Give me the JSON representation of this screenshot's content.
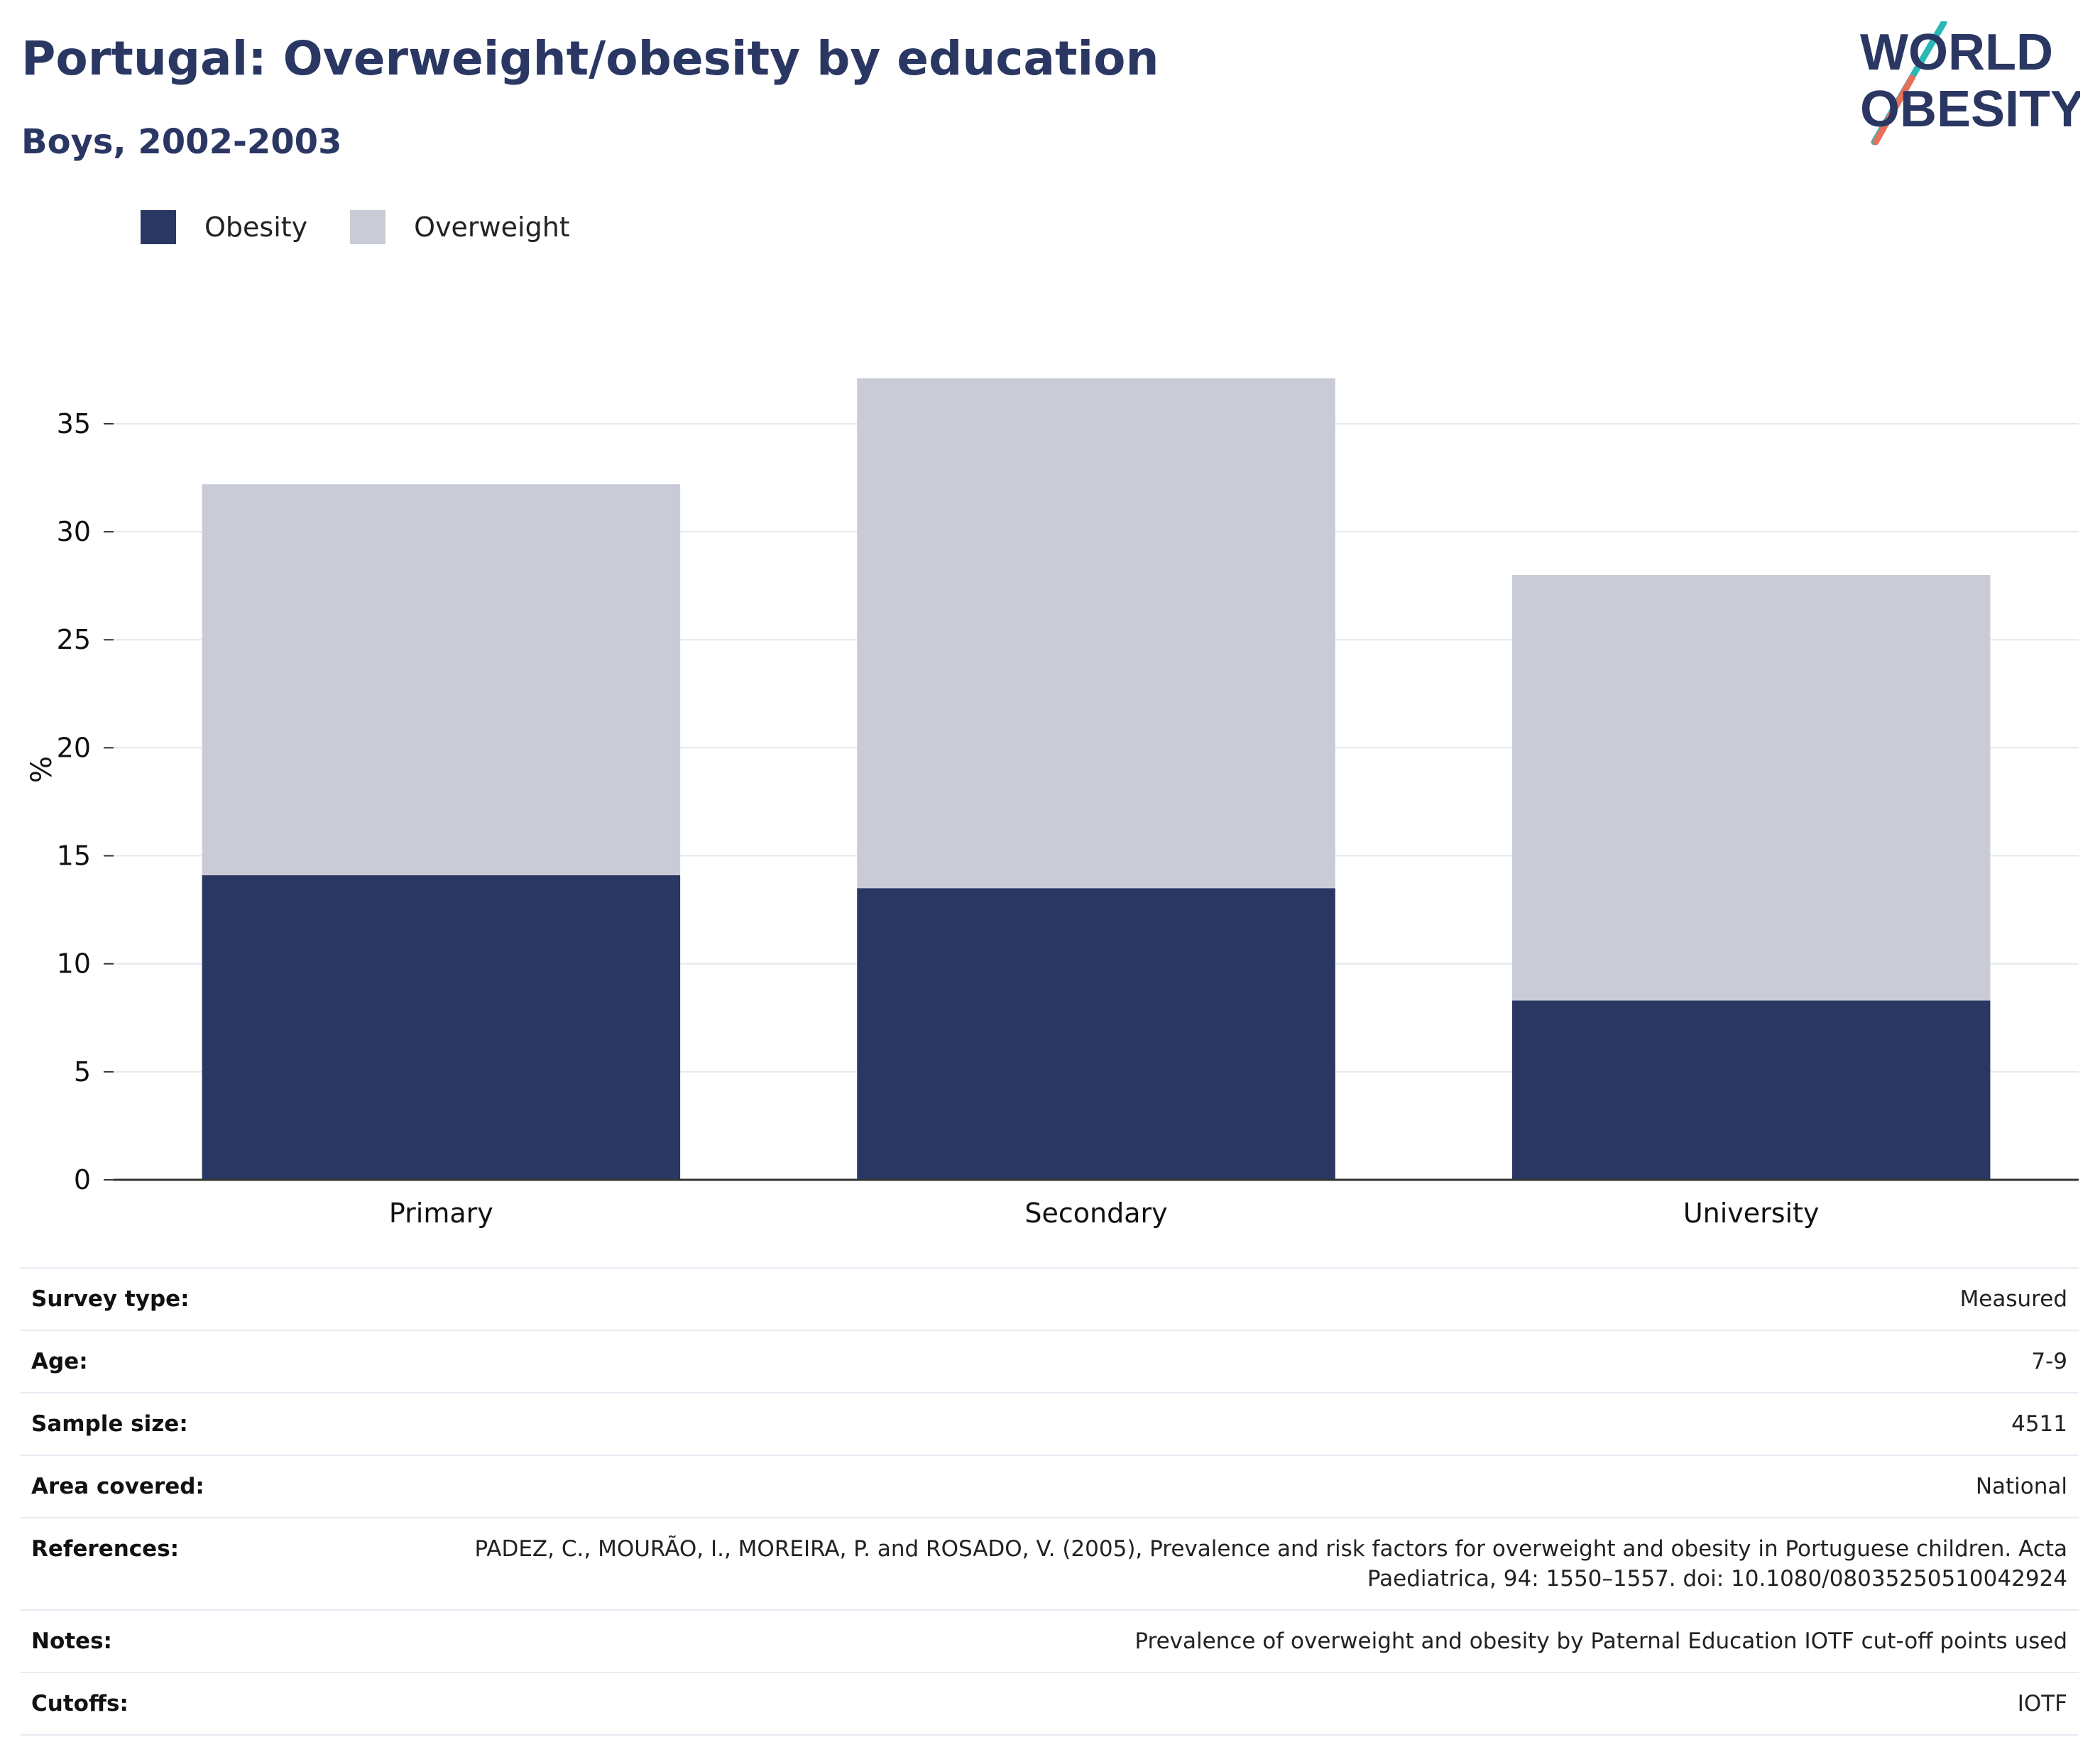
{
  "header": {
    "title": "Portugal: Overweight/obesity by education",
    "subtitle": "Boys, 2002-2003"
  },
  "logo": {
    "line1": "WORLD",
    "line2": "OBESITY"
  },
  "legend": [
    {
      "label": "Obesity",
      "color": "#2b3763"
    },
    {
      "label": "Overweight",
      "color": "#c9ccd7"
    }
  ],
  "chart_data": {
    "type": "bar",
    "stacked": true,
    "categories": [
      "Primary",
      "Secondary",
      "University"
    ],
    "series": [
      {
        "name": "Obesity",
        "color": "#2b3763",
        "values": [
          14.1,
          13.5,
          8.3
        ]
      },
      {
        "name": "Overweight",
        "color": "#c9ccd7",
        "values": [
          18.1,
          23.6,
          19.7
        ]
      }
    ],
    "ylabel": "%",
    "xlabel": "",
    "ylim": [
      0,
      37.2
    ],
    "yticks": [
      0,
      5,
      10,
      15,
      20,
      25,
      30,
      35
    ],
    "grid": true,
    "legend_position": "top-left"
  },
  "info": [
    {
      "key": "Survey type:",
      "value": "Measured"
    },
    {
      "key": "Age:",
      "value": "7-9"
    },
    {
      "key": "Sample size:",
      "value": "4511"
    },
    {
      "key": "Area covered:",
      "value": "National"
    },
    {
      "key": "References:",
      "value": "PADEZ, C., MOURÃO, I., MOREIRA, P. and ROSADO, V. (2005), Prevalence and risk factors for overweight and obesity in Portuguese children. Acta Paediatrica, 94: 1550–1557. doi: 10.1080/08035250510042924"
    },
    {
      "key": "Notes:",
      "value": "Prevalence of overweight and obesity by Paternal Education IOTF cut-off points used"
    },
    {
      "key": "Cutoffs:",
      "value": "IOTF"
    }
  ]
}
